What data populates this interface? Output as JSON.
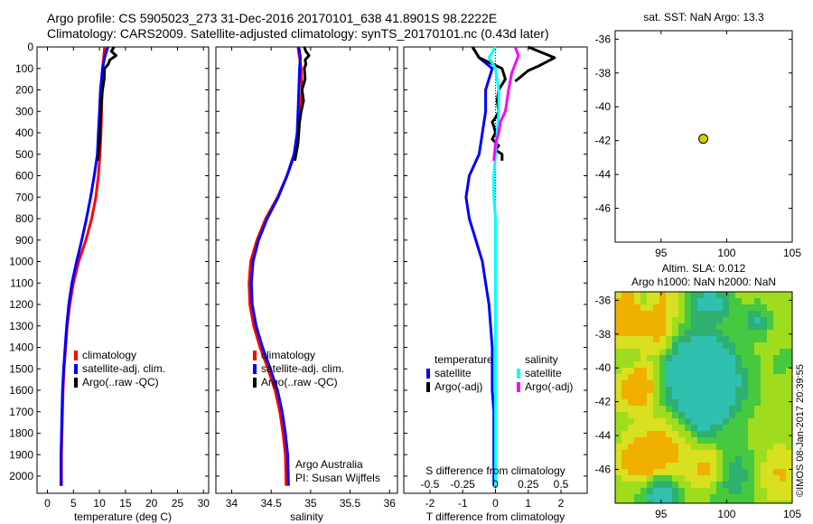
{
  "title": {
    "line1": "Argo profile: CS 5905023_273 31-Dec-2016 20170101_638 41.8901S 98.2222E",
    "line2": "Climatology: CARS2009. Satellite-adjusted climatology: synTS_20170101.nc (0.43d later)"
  },
  "colors": {
    "climatology": "#ff0000",
    "satellite": "#0000ff",
    "argo": "#000000",
    "sal_satellite": "#00ffff",
    "sal_argo": "#ff00ff"
  },
  "chart_data": [
    {
      "type": "line",
      "id": "temperature",
      "xlabel": "temperature (deg C)",
      "ylabel": "",
      "xlim": [
        -2,
        31
      ],
      "ylim": [
        0,
        2080
      ],
      "y_reversed": true,
      "xticks": [
        "0",
        "5",
        "10",
        "15",
        "20",
        "25",
        "30"
      ],
      "yticks": [
        "0",
        "100",
        "200",
        "300",
        "400",
        "500",
        "600",
        "700",
        "800",
        "900",
        "1000",
        "1100",
        "1200",
        "1300",
        "1400",
        "1500",
        "1600",
        "1700",
        "1800",
        "1900",
        "2000"
      ],
      "legend": [
        "climatology",
        "satellite-adj. clim.",
        "Argo(..raw -QC)"
      ],
      "series": [
        {
          "name": "climatology",
          "color": "climatology",
          "x": [
            11.0,
            10.8,
            10.6,
            10.5,
            10.4,
            10.3,
            10.1,
            9.8,
            9.3,
            8.5,
            7.4,
            6.0,
            5.0,
            4.3,
            3.8,
            3.5,
            3.2,
            3.0,
            2.9,
            2.8,
            2.7,
            2.7
          ],
          "y": [
            0,
            50,
            100,
            200,
            300,
            400,
            500,
            600,
            700,
            800,
            900,
            1000,
            1100,
            1200,
            1300,
            1400,
            1500,
            1600,
            1700,
            1800,
            1900,
            2045
          ]
        },
        {
          "name": "satellite-adj. clim.",
          "color": "satellite",
          "x": [
            11.6,
            11.0,
            10.6,
            10.2,
            10.0,
            9.8,
            9.6,
            9.0,
            8.3,
            7.5,
            6.6,
            5.6,
            4.7,
            4.1,
            3.7,
            3.4,
            3.1,
            2.9,
            2.8,
            2.7,
            2.6,
            2.6
          ],
          "y": [
            0,
            50,
            100,
            200,
            300,
            400,
            500,
            600,
            700,
            800,
            900,
            1000,
            1100,
            1200,
            1300,
            1400,
            1500,
            1600,
            1700,
            1800,
            1900,
            2045
          ]
        },
        {
          "name": "Argo(..raw -QC)",
          "color": "argo",
          "x": [
            12.8,
            12.3,
            13.2,
            12.0,
            11.7,
            11.0,
            10.9,
            10.6,
            10.4,
            10.3,
            10.2,
            10.1,
            10.0,
            9.8,
            9.7
          ],
          "y": [
            0,
            20,
            40,
            60,
            80,
            100,
            150,
            200,
            250,
            300,
            350,
            400,
            450,
            500,
            530
          ]
        }
      ]
    },
    {
      "type": "line",
      "id": "salinity",
      "xlabel": "salinity",
      "ylabel": "",
      "xlim": [
        33.8,
        36.1
      ],
      "ylim": [
        0,
        2080
      ],
      "y_reversed": true,
      "xticks": [
        "34",
        "34.5",
        "35",
        "35.5",
        "36"
      ],
      "legend": [
        "climatology",
        "satellite-adj. clim.",
        "Argo(..raw -QC)"
      ],
      "annotation": [
        "Argo Australia",
        "PI: Susan Wijffels"
      ],
      "series": [
        {
          "name": "climatology",
          "color": "climatology",
          "x": [
            34.84,
            34.86,
            34.88,
            34.89,
            34.87,
            34.84,
            34.8,
            34.7,
            34.58,
            34.43,
            34.32,
            34.24,
            34.22,
            34.23,
            34.28,
            34.36,
            34.46,
            34.55,
            34.61,
            34.65,
            34.68,
            34.69
          ],
          "y": [
            0,
            50,
            100,
            200,
            300,
            400,
            500,
            600,
            700,
            800,
            900,
            1000,
            1100,
            1200,
            1300,
            1400,
            1500,
            1600,
            1700,
            1800,
            1900,
            2045
          ]
        },
        {
          "name": "satellite-adj. clim.",
          "color": "satellite",
          "x": [
            34.85,
            34.87,
            34.86,
            34.85,
            34.84,
            34.83,
            34.79,
            34.7,
            34.59,
            34.45,
            34.34,
            34.27,
            34.25,
            34.26,
            34.31,
            34.39,
            34.49,
            34.58,
            34.64,
            34.68,
            34.71,
            34.72
          ],
          "y": [
            0,
            50,
            100,
            200,
            300,
            400,
            500,
            600,
            700,
            800,
            900,
            1000,
            1100,
            1200,
            1300,
            1400,
            1500,
            1600,
            1700,
            1800,
            1900,
            2045
          ]
        },
        {
          "name": "Argo(..raw -QC)",
          "color": "argo",
          "x": [
            34.92,
            34.94,
            34.98,
            34.93,
            34.94,
            34.92,
            34.93,
            34.89,
            34.91,
            34.88,
            34.86,
            34.84,
            34.8
          ],
          "y": [
            0,
            20,
            40,
            60,
            80,
            100,
            150,
            200,
            250,
            300,
            350,
            450,
            530
          ]
        }
      ]
    },
    {
      "type": "line",
      "id": "difference",
      "xlabel": "T difference from climatology",
      "xlabel_top": "S difference from climatology",
      "xlim": [
        -2.8,
        2.8
      ],
      "ylim": [
        0,
        2080
      ],
      "y_reversed": true,
      "xticks": [
        "-2",
        "-1",
        "0",
        "1",
        "2"
      ],
      "xticks_s": [
        "-0.5",
        "-0.25",
        "0",
        "0.25",
        "0.5"
      ],
      "legend_titles": [
        "temperature",
        "salinity"
      ],
      "legend": [
        "satellite",
        "Argo(-adj)",
        "satellite",
        "Argo(-adj)"
      ],
      "series": [
        {
          "name": "temperature satellite",
          "color": "satellite",
          "x": [
            -0.7,
            -0.5,
            -0.1,
            -0.3,
            -0.3,
            -0.4,
            -0.5,
            -0.8,
            -0.9,
            -0.8,
            -0.6,
            -0.4,
            -0.3,
            -0.2,
            -0.15,
            -0.1,
            -0.1,
            -0.1,
            -0.05,
            -0.05,
            -0.05,
            -0.05
          ],
          "y": [
            0,
            50,
            100,
            200,
            300,
            400,
            500,
            600,
            700,
            800,
            900,
            1000,
            1100,
            1200,
            1300,
            1400,
            1500,
            1600,
            1700,
            1800,
            1900,
            2045
          ]
        },
        {
          "name": "temperature Argo(-adj)",
          "color": "argo",
          "x": [
            -0.7,
            -0.5,
            0.2,
            0.3,
            0.1,
            0.05,
            0.1,
            0.0,
            -0.1,
            -0.05,
            0.0,
            -0.1,
            0.1,
            0.0,
            0.2,
            0.2
          ],
          "y": [
            0,
            50,
            100,
            150,
            200,
            250,
            300,
            330,
            350,
            370,
            400,
            430,
            460,
            480,
            500,
            530
          ]
        },
        {
          "name": "salinity satellite",
          "color": "sal_satellite",
          "x": [
            0.0,
            -0.2,
            0.0,
            0.1,
            0.1,
            0.05,
            0.0,
            -0.05,
            -0.05,
            0.0,
            0.0,
            0.0,
            0.0,
            0.0,
            0.0,
            0.0,
            0.0,
            0.0,
            0.0,
            0.0,
            0.0,
            0.0
          ],
          "y": [
            0,
            50,
            100,
            200,
            300,
            400,
            500,
            600,
            700,
            800,
            900,
            1000,
            1100,
            1200,
            1300,
            1400,
            1500,
            1600,
            1700,
            1800,
            1900,
            2045
          ]
        },
        {
          "name": "salinity Argo(-adj)",
          "color": "sal_argo",
          "x": [
            0.6,
            0.7,
            0.6,
            0.5,
            0.45,
            0.4,
            0.35,
            0.3,
            0.15,
            0.1,
            0.0,
            -0.05
          ],
          "y": [
            0,
            40,
            80,
            120,
            160,
            200,
            250,
            300,
            350,
            400,
            450,
            530
          ]
        },
        {
          "name": "temperature Argo raw",
          "color": "argo",
          "x": [
            1.0,
            1.8,
            1.3,
            1.0,
            0.6
          ],
          "y": [
            0,
            50,
            90,
            110,
            160
          ]
        }
      ]
    },
    {
      "type": "scatter",
      "id": "sst-map",
      "title": "sat. SST: NaN Argo: 13.3",
      "xlim": [
        91.5,
        105
      ],
      "ylim": [
        -48,
        -35.5
      ],
      "xticks": [
        "95",
        "100",
        "105"
      ],
      "yticks": [
        "-36",
        "-38",
        "-40",
        "-42",
        "-44",
        "-46"
      ],
      "points": [
        {
          "x": 98.2222,
          "y": -41.8901
        }
      ]
    },
    {
      "type": "heatmap",
      "id": "sla-map",
      "title_line1": "Altim. SLA: 0.012",
      "title_line2": "Argo h1000: NaN h2000: NaN",
      "xlim": [
        91.5,
        105
      ],
      "ylim": [
        -48,
        -35.5
      ],
      "xticks": [
        "95",
        "100",
        "105"
      ],
      "yticks": [
        "-36",
        "-38",
        "-40",
        "-42",
        "-44",
        "-46"
      ]
    }
  ],
  "stamp": "©IMOS 08-Jan-2017 20:39:55"
}
